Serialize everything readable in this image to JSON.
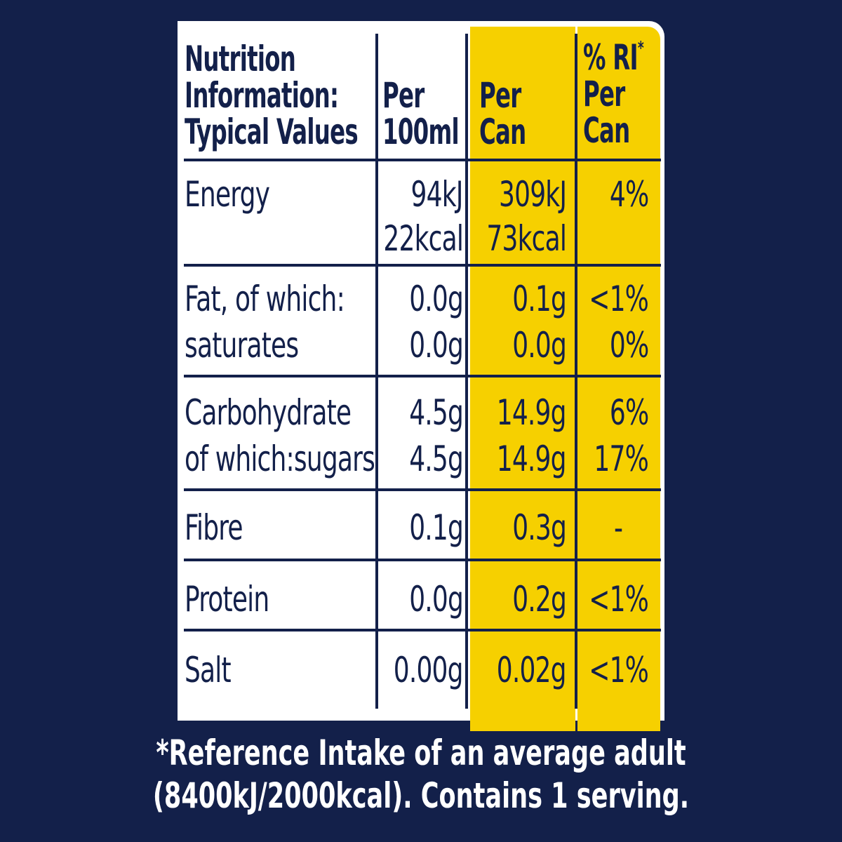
{
  "header": {
    "title_lines": [
      "Nutrition",
      "Information:",
      "Typical Values"
    ],
    "per100_lines": [
      "Per",
      "100ml"
    ],
    "percan_lines": [
      "Per",
      "Can"
    ],
    "ri_line1": "% RI",
    "ri_star": "*",
    "ri_line2": "Per",
    "ri_line3": "Can"
  },
  "rows": {
    "energy": {
      "label": "Energy",
      "per100_kj": "94kJ",
      "per100_kcal": "22kcal",
      "percan_kj": "309kJ",
      "percan_kcal": "73kcal",
      "ri": "4%"
    },
    "fat": {
      "label": "Fat, of which:",
      "per100": "0.0g",
      "percan": "0.1g",
      "ri": "<1%"
    },
    "saturates": {
      "label": "saturates",
      "per100": "0.0g",
      "percan": "0.0g",
      "ri": "0%"
    },
    "carbohydrate": {
      "label": "Carbohydrate",
      "per100": "4.5g",
      "percan": "14.9g",
      "ri": "6%"
    },
    "sugars": {
      "label": "of which:sugars",
      "per100": "4.5g",
      "percan": "14.9g",
      "ri": "17%"
    },
    "fibre": {
      "label": "Fibre",
      "per100": "0.1g",
      "percan": "0.3g",
      "ri": "-"
    },
    "protein": {
      "label": "Protein",
      "per100": "0.0g",
      "percan": "0.2g",
      "ri": "<1%"
    },
    "salt": {
      "label": "Salt",
      "per100": "0.00g",
      "percan": "0.02g",
      "ri": "<1%"
    }
  },
  "footer": {
    "line1": "*Reference Intake of an average adult",
    "line2": "(8400kJ/2000kcal). Contains 1 serving."
  },
  "colors": {
    "background": "#13204a",
    "highlight": "#f6d000",
    "panel": "#ffffff"
  }
}
